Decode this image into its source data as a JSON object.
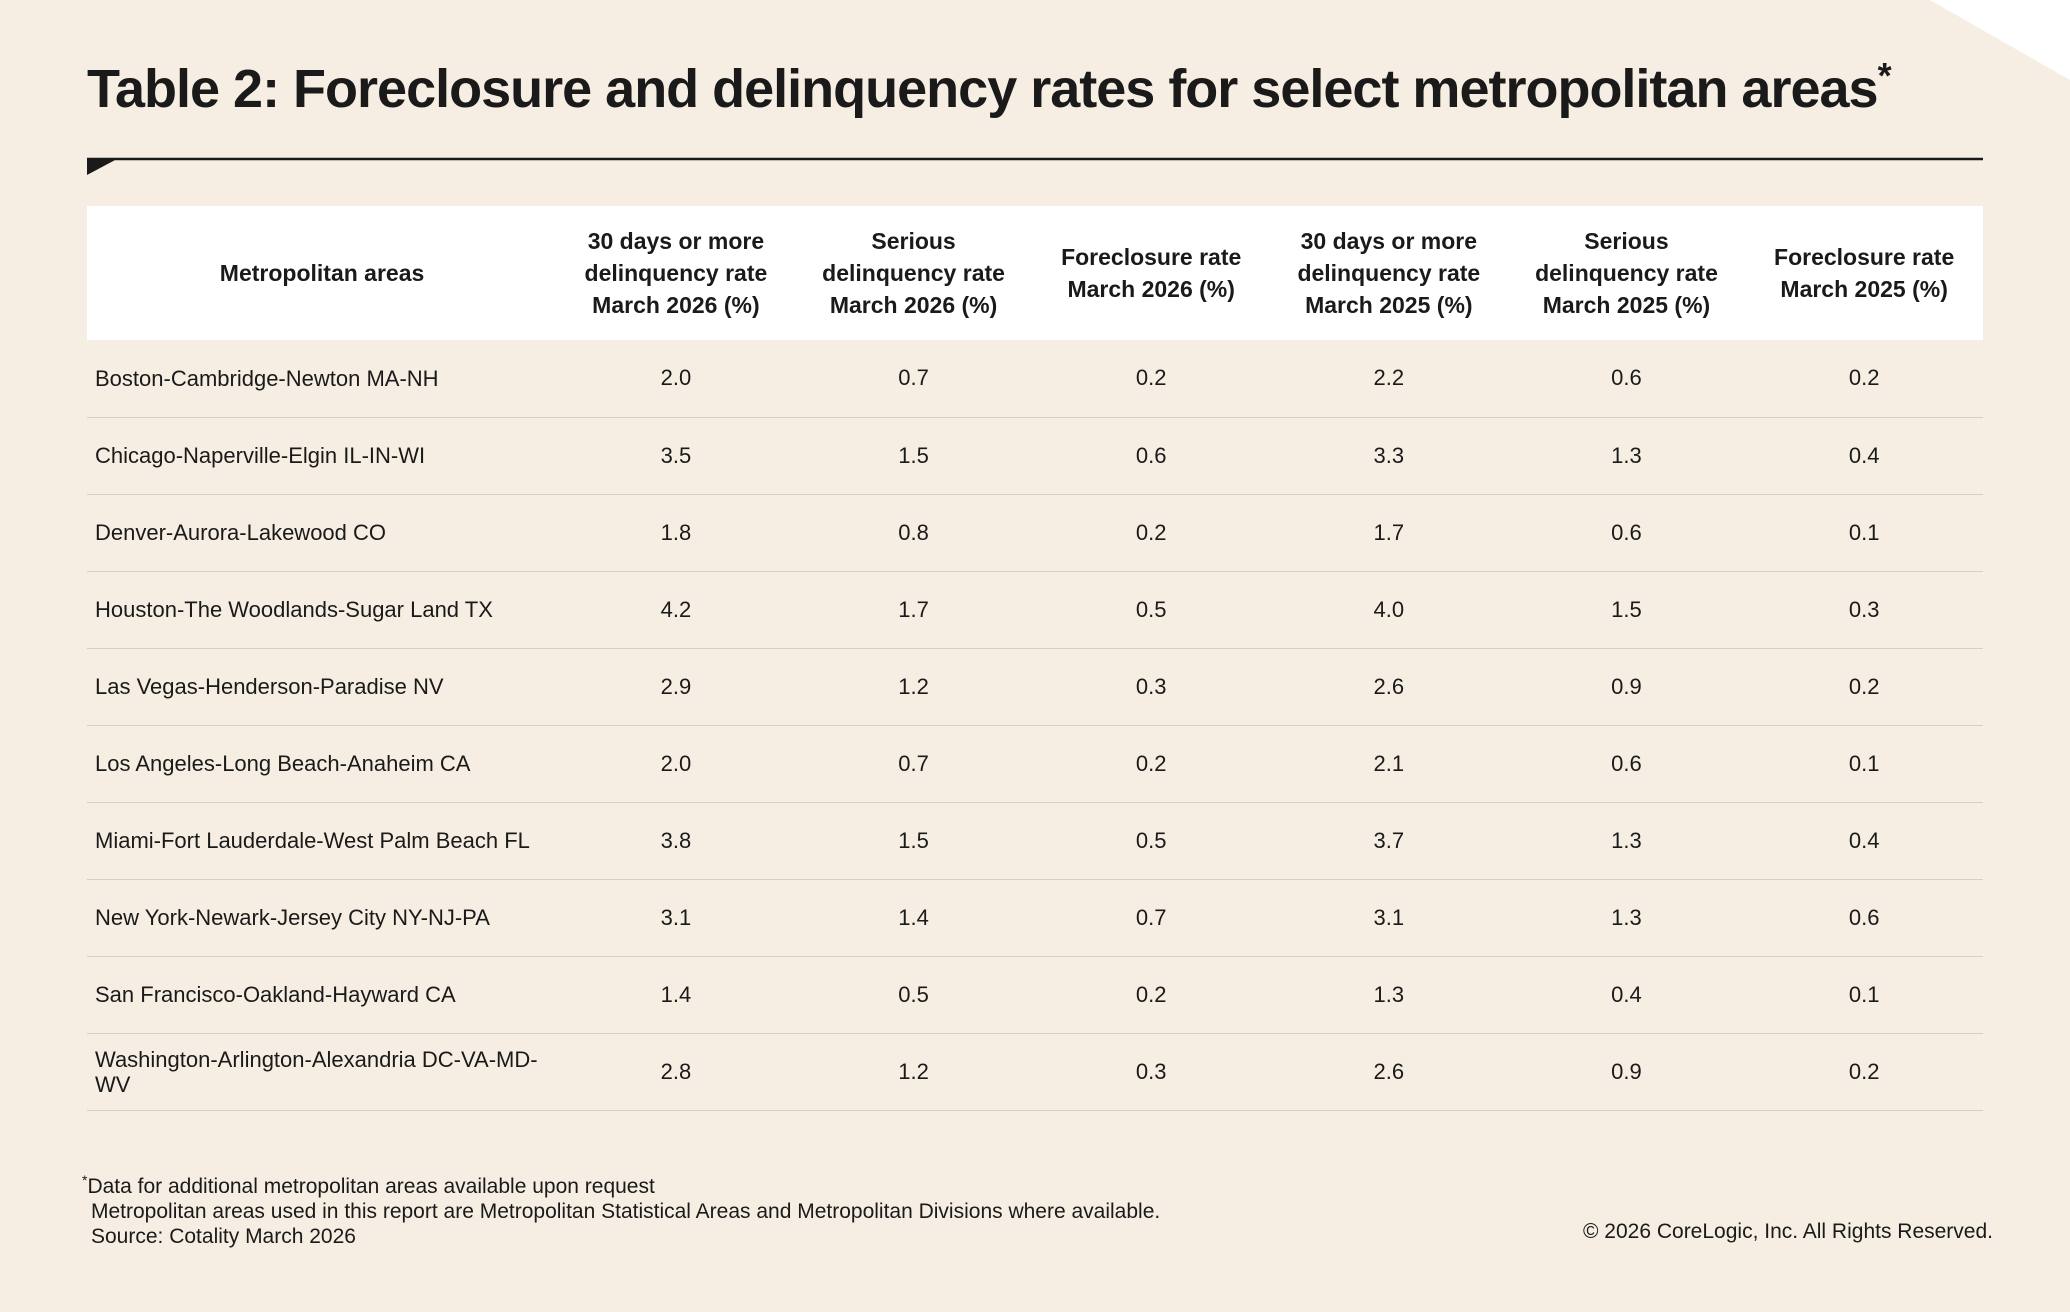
{
  "title": "Table 2: Foreclosure and delinquency rates for select metropolitan areas",
  "title_marker": "*",
  "table": {
    "headers": [
      [
        "Metropolitan areas"
      ],
      [
        "30 days or more",
        "delinquency rate",
        "March 2026 (%)"
      ],
      [
        "Serious",
        "delinquency rate",
        "March 2026 (%)"
      ],
      [
        "Foreclosure rate",
        "March 2026 (%)"
      ],
      [
        "30 days or more",
        "delinquency rate",
        "March 2025 (%)"
      ],
      [
        "Serious",
        "delinquency rate",
        "March 2025 (%)"
      ],
      [
        "Foreclosure rate",
        "March 2025 (%)"
      ]
    ],
    "rows": [
      [
        "Boston-Cambridge-Newton MA-NH",
        "2.0",
        "0.7",
        "0.2",
        "2.2",
        "0.6",
        "0.2"
      ],
      [
        "Chicago-Naperville-Elgin IL-IN-WI",
        "3.5",
        "1.5",
        "0.6",
        "3.3",
        "1.3",
        "0.4"
      ],
      [
        "Denver-Aurora-Lakewood CO",
        "1.8",
        "0.8",
        "0.2",
        "1.7",
        "0.6",
        "0.1"
      ],
      [
        "Houston-The Woodlands-Sugar Land TX",
        "4.2",
        "1.7",
        "0.5",
        "4.0",
        "1.5",
        "0.3"
      ],
      [
        "Las Vegas-Henderson-Paradise NV",
        "2.9",
        "1.2",
        "0.3",
        "2.6",
        "0.9",
        "0.2"
      ],
      [
        "Los Angeles-Long Beach-Anaheim CA",
        "2.0",
        "0.7",
        "0.2",
        "2.1",
        "0.6",
        "0.1"
      ],
      [
        "Miami-Fort Lauderdale-West Palm Beach FL",
        "3.8",
        "1.5",
        "0.5",
        "3.7",
        "1.3",
        "0.4"
      ],
      [
        "New York-Newark-Jersey City NY-NJ-PA",
        "3.1",
        "1.4",
        "0.7",
        "3.1",
        "1.3",
        "0.6"
      ],
      [
        "San Francisco-Oakland-Hayward CA",
        "1.4",
        "0.5",
        "0.2",
        "1.3",
        "0.4",
        "0.1"
      ],
      [
        "Washington-Arlington-Alexandria DC-VA-MD-WV",
        "2.8",
        "1.2",
        "0.3",
        "2.6",
        "0.9",
        "0.2"
      ]
    ]
  },
  "footnotes": {
    "marker": "*",
    "line1": "Data for additional metropolitan areas available upon request",
    "line2": "Metropolitan areas used in this report are Metropolitan Statistical Areas and Metropolitan Divisions where available.",
    "line3": "Source: Cotality March 2026"
  },
  "copyright": "© 2026 CoreLogic, Inc. All Rights Reserved.",
  "colors": {
    "background": "#f6eee2",
    "header_background": "#ffffff",
    "text": "#1a1a1a"
  }
}
